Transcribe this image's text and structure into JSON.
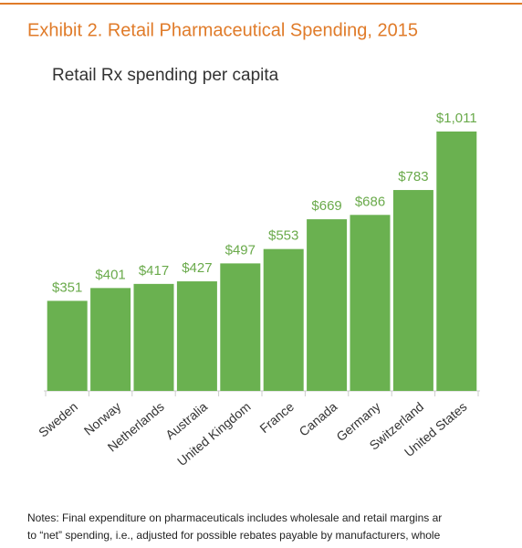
{
  "chart_data": {
    "type": "bar",
    "title": "Exhibit 2. Retail Pharmaceutical Spending, 2015",
    "subtitle": "Retail Rx spending per capita",
    "categories": [
      "Sweden",
      "Norway",
      "Netherlands",
      "Australia",
      "United Kingdom",
      "France",
      "Canada",
      "Germany",
      "Switzerland",
      "United States"
    ],
    "values": [
      351,
      401,
      417,
      427,
      497,
      553,
      669,
      686,
      783,
      1011
    ],
    "value_labels": [
      "$351",
      "$401",
      "$417",
      "$427",
      "$497",
      "$553",
      "$669",
      "$686",
      "$783",
      "$1,011"
    ],
    "color": "#6ab150",
    "notes": [
      "Notes: Final expenditure on pharmaceuticals includes wholesale and retail margins ar",
      "to “net” spending, i.e., adjusted for possible rebates payable by manufacturers, whole"
    ]
  }
}
